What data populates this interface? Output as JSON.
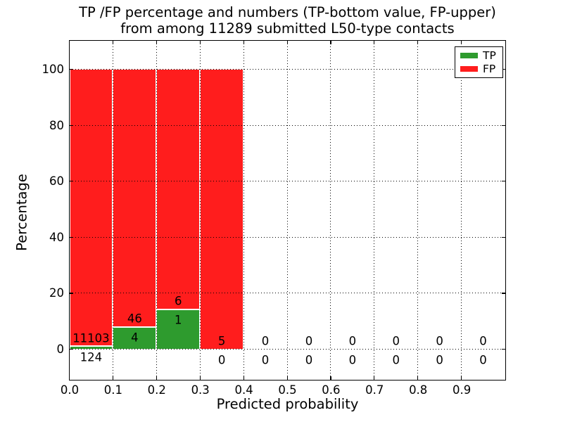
{
  "title": {
    "line1": "TP /FP percentage and numbers (TP-bottom value, FP-upper)",
    "line2": "from among 11289 submitted L50-type contacts"
  },
  "chart_data": {
    "type": "bar",
    "stacked": true,
    "value_mode": "percent_of_bin_total",
    "xlabel": "Predicted probability",
    "ylabel": "Percentage",
    "bin_edges": [
      0.0,
      0.1,
      0.2,
      0.3,
      0.4,
      0.5,
      0.6,
      0.7,
      0.8,
      0.9,
      1.0
    ],
    "series": [
      {
        "name": "TP",
        "color": "#2e9b2e",
        "counts": [
          124,
          4,
          1,
          0,
          0,
          0,
          0,
          0,
          0,
          0
        ]
      },
      {
        "name": "FP",
        "color": "#ff1d1d",
        "counts": [
          11103,
          46,
          6,
          5,
          0,
          0,
          0,
          0,
          0,
          0
        ]
      }
    ],
    "tp_percent_per_bin": [
      1.1,
      8.0,
      14.29,
      0,
      0,
      0,
      0,
      0,
      0,
      0
    ],
    "fp_percent_per_bin": [
      98.9,
      92.0,
      85.71,
      100,
      0,
      0,
      0,
      0,
      0,
      0
    ],
    "total_submitted_contacts": 11289,
    "x_tick_labels": [
      "0.0",
      "0.1",
      "0.2",
      "0.3",
      "0.4",
      "0.5",
      "0.6",
      "0.7",
      "0.8",
      "0.9"
    ],
    "x_tick_values": [
      0.0,
      0.1,
      0.2,
      0.3,
      0.4,
      0.5,
      0.6,
      0.7,
      0.8,
      0.9
    ],
    "y_tick_labels": [
      "0",
      "20",
      "40",
      "60",
      "80",
      "100"
    ],
    "y_tick_values": [
      0,
      20,
      40,
      60,
      80,
      100
    ],
    "xlim": [
      0,
      1.0
    ],
    "ylim": [
      -10.8,
      110.3
    ],
    "grid": true,
    "grid_style": "dotted",
    "legend": {
      "position": "upper right",
      "entries": [
        {
          "label": "TP",
          "color": "#2e9b2e"
        },
        {
          "label": "FP",
          "color": "#ff1d1d"
        }
      ]
    },
    "annotation_rule": "FP count printed above TP count near bar base; TP count printed lower (below axis when TP bar is tiny or zero)"
  },
  "colors": {
    "background": "#ffffff",
    "axis": "#000000",
    "tp_green": "#2e9b2e",
    "fp_red": "#ff1d1d"
  }
}
